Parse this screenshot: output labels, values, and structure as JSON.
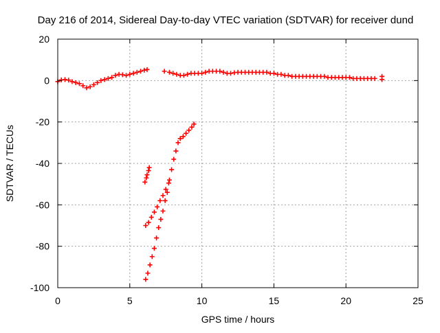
{
  "chart_data": {
    "type": "scatter",
    "title": "Day 216 of 2014, Sidereal Day-to-day VTEC variation (SDTVAR) for receiver dund",
    "xlabel": "GPS time / hours",
    "ylabel": "SDTVAR / TECUs",
    "xlim": [
      0,
      25
    ],
    "ylim": [
      -100,
      20
    ],
    "xticks": [
      0,
      5,
      10,
      15,
      20,
      25
    ],
    "yticks": [
      -100,
      -80,
      -60,
      -40,
      -20,
      0,
      20
    ],
    "grid": true,
    "marker": "+",
    "series": [
      {
        "name": "SDTVAR near-zero band",
        "color": "#ff0000",
        "points": [
          [
            0.0,
            -0.5
          ],
          [
            0.25,
            0.3
          ],
          [
            0.5,
            0.5
          ],
          [
            0.75,
            0.2
          ],
          [
            1.0,
            -0.5
          ],
          [
            1.25,
            -1.0
          ],
          [
            1.5,
            -1.5
          ],
          [
            1.75,
            -2.5
          ],
          [
            2.0,
            -3.5
          ],
          [
            2.25,
            -3.0
          ],
          [
            2.5,
            -2.0
          ],
          [
            2.75,
            -1.0
          ],
          [
            3.0,
            0.0
          ],
          [
            3.25,
            0.5
          ],
          [
            3.5,
            1.0
          ],
          [
            3.75,
            1.5
          ],
          [
            4.0,
            2.5
          ],
          [
            4.25,
            3.0
          ],
          [
            4.5,
            2.8
          ],
          [
            4.75,
            2.5
          ],
          [
            5.0,
            3.0
          ],
          [
            5.25,
            3.5
          ],
          [
            5.5,
            4.0
          ],
          [
            5.75,
            4.5
          ],
          [
            6.0,
            5.0
          ],
          [
            6.2,
            5.3
          ],
          [
            7.4,
            4.5
          ],
          [
            7.75,
            4.0
          ],
          [
            8.0,
            3.5
          ],
          [
            8.25,
            3.0
          ],
          [
            8.5,
            2.5
          ],
          [
            8.75,
            2.5
          ],
          [
            9.0,
            3.0
          ],
          [
            9.25,
            3.5
          ],
          [
            9.5,
            3.5
          ],
          [
            9.75,
            3.5
          ],
          [
            10.0,
            3.5
          ],
          [
            10.25,
            4.0
          ],
          [
            10.5,
            4.5
          ],
          [
            10.75,
            4.5
          ],
          [
            11.0,
            4.5
          ],
          [
            11.25,
            4.5
          ],
          [
            11.5,
            4.0
          ],
          [
            11.75,
            3.5
          ],
          [
            12.0,
            3.5
          ],
          [
            12.25,
            3.8
          ],
          [
            12.5,
            4.0
          ],
          [
            12.75,
            4.0
          ],
          [
            13.0,
            4.0
          ],
          [
            13.25,
            4.0
          ],
          [
            13.5,
            4.0
          ],
          [
            13.75,
            4.0
          ],
          [
            14.0,
            4.0
          ],
          [
            14.25,
            4.0
          ],
          [
            14.5,
            4.0
          ],
          [
            14.75,
            3.5
          ],
          [
            15.0,
            3.5
          ],
          [
            15.25,
            3.0
          ],
          [
            15.5,
            3.0
          ],
          [
            15.75,
            2.5
          ],
          [
            16.0,
            2.5
          ],
          [
            16.25,
            2.0
          ],
          [
            16.5,
            2.0
          ],
          [
            16.75,
            2.0
          ],
          [
            17.0,
            2.0
          ],
          [
            17.25,
            2.0
          ],
          [
            17.5,
            2.0
          ],
          [
            17.75,
            2.0
          ],
          [
            18.0,
            2.0
          ],
          [
            18.25,
            2.0
          ],
          [
            18.5,
            2.0
          ],
          [
            18.75,
            1.5
          ],
          [
            19.0,
            1.5
          ],
          [
            19.25,
            1.5
          ],
          [
            19.5,
            1.5
          ],
          [
            19.75,
            1.5
          ],
          [
            20.0,
            1.5
          ],
          [
            20.25,
            1.5
          ],
          [
            20.5,
            1.0
          ],
          [
            20.75,
            1.0
          ],
          [
            21.0,
            1.0
          ],
          [
            21.25,
            1.0
          ],
          [
            21.5,
            1.0
          ],
          [
            21.75,
            1.0
          ],
          [
            22.0,
            1.0
          ],
          [
            22.5,
            0.5
          ],
          [
            22.5,
            2.0
          ]
        ]
      },
      {
        "name": "SDTVAR lower branch",
        "color": "#ff0000",
        "points": [
          [
            6.1,
            -96.0
          ],
          [
            6.25,
            -93.0
          ],
          [
            6.4,
            -89.0
          ],
          [
            6.55,
            -85.0
          ],
          [
            6.7,
            -81.0
          ],
          [
            6.85,
            -76.0
          ],
          [
            7.0,
            -71.0
          ],
          [
            7.15,
            -67.0
          ],
          [
            7.3,
            -63.0
          ],
          [
            7.45,
            -58.0
          ],
          [
            7.6,
            -54.0
          ],
          [
            7.75,
            -48.0
          ],
          [
            7.9,
            -43.0
          ],
          [
            8.05,
            -38.0
          ],
          [
            8.2,
            -34.0
          ],
          [
            8.35,
            -30.0
          ],
          [
            8.5,
            -28.0
          ],
          [
            8.7,
            -27.0
          ],
          [
            8.9,
            -25.5
          ],
          [
            9.1,
            -24.0
          ],
          [
            9.3,
            -22.5
          ],
          [
            9.45,
            -21.0
          ]
        ]
      },
      {
        "name": "SDTVAR upper branch",
        "color": "#ff0000",
        "points": [
          [
            6.1,
            -70.0
          ],
          [
            6.3,
            -68.5
          ],
          [
            6.5,
            -66.0
          ],
          [
            6.7,
            -63.5
          ],
          [
            6.9,
            -61.0
          ],
          [
            7.1,
            -58.0
          ],
          [
            7.3,
            -55.5
          ],
          [
            7.5,
            -52.5
          ],
          [
            7.7,
            -49.5
          ]
        ]
      },
      {
        "name": "SDTVAR isolated cluster",
        "color": "#ff0000",
        "points": [
          [
            6.05,
            -49.0
          ],
          [
            6.15,
            -47.0
          ],
          [
            6.2,
            -45.5
          ],
          [
            6.3,
            -43.5
          ],
          [
            6.35,
            -42.0
          ]
        ]
      }
    ]
  }
}
